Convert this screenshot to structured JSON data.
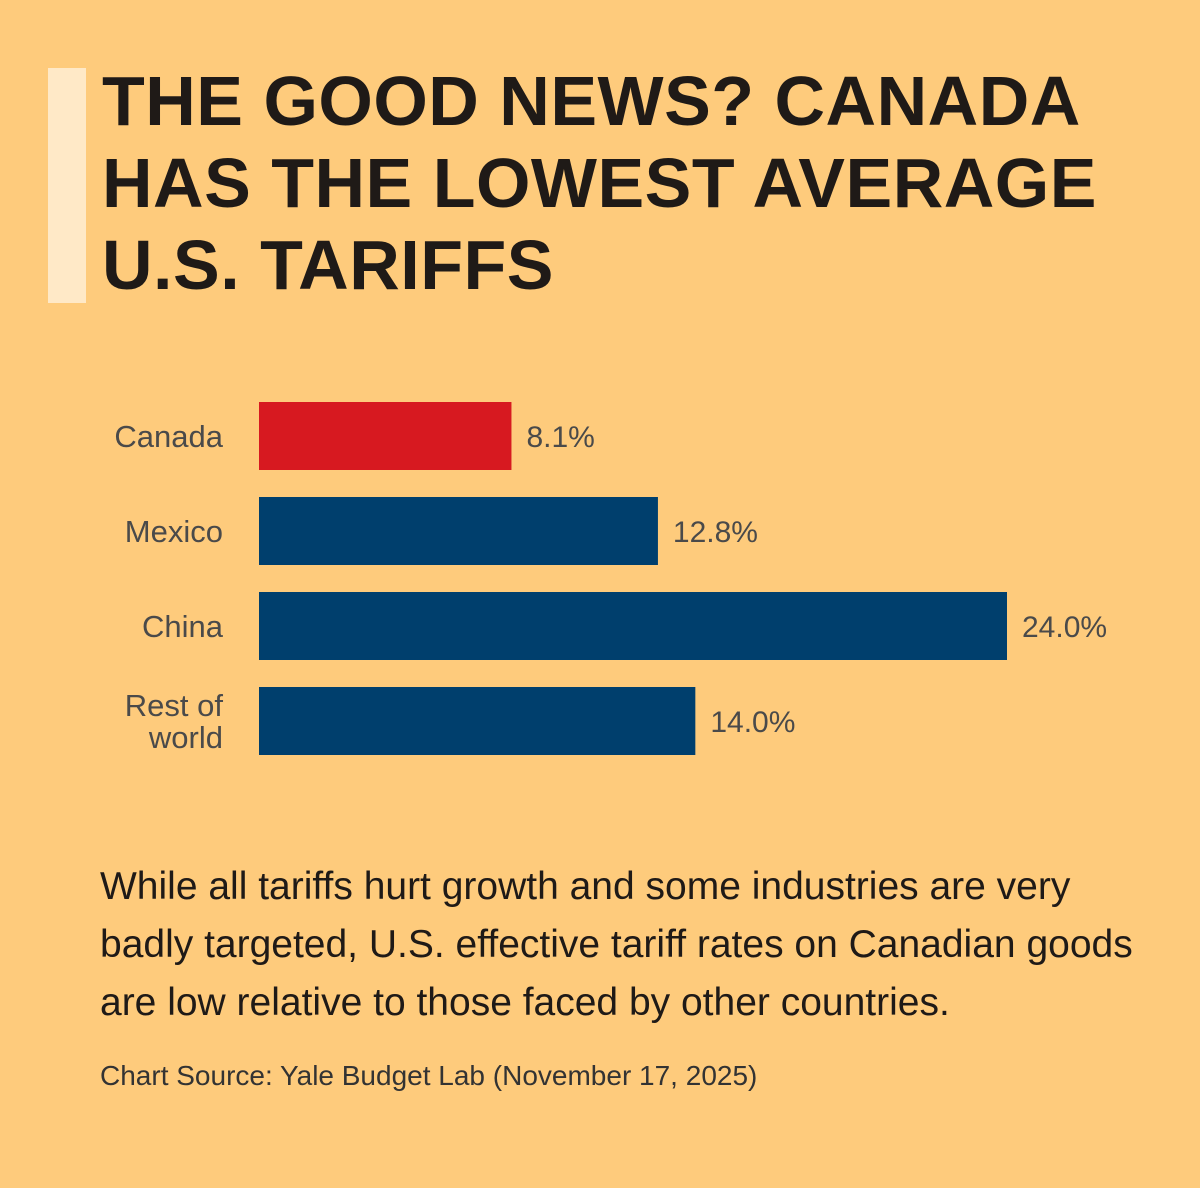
{
  "headline": "THE GOOD NEWS? CANADA HAS THE LOWEST AVERAGE U.S. TARIFFS",
  "body": "While all tariffs hurt growth and some industries are very badly targeted, U.S. effective tariff rates on Canadian goods are low relative to those faced by other countries.",
  "source": "Chart Source: Yale Budget Lab (November 17, 2025)",
  "colors": {
    "background": "#FECB7C",
    "accent_bar": "#FFE9C7",
    "highlight": "#D71920",
    "default": "#003F6D"
  },
  "chart_data": {
    "type": "bar",
    "orientation": "horizontal",
    "categories": [
      [
        "Canada"
      ],
      [
        "Mexico"
      ],
      [
        "China"
      ],
      [
        "Rest of",
        "world"
      ]
    ],
    "values": [
      8.1,
      12.8,
      24.0,
      14.0
    ],
    "value_labels": [
      "8.1%",
      "12.8%",
      "24.0%",
      "14.0%"
    ],
    "highlight_index": 0,
    "xlim": [
      0,
      24.0
    ],
    "grid": false,
    "legend": "none"
  }
}
